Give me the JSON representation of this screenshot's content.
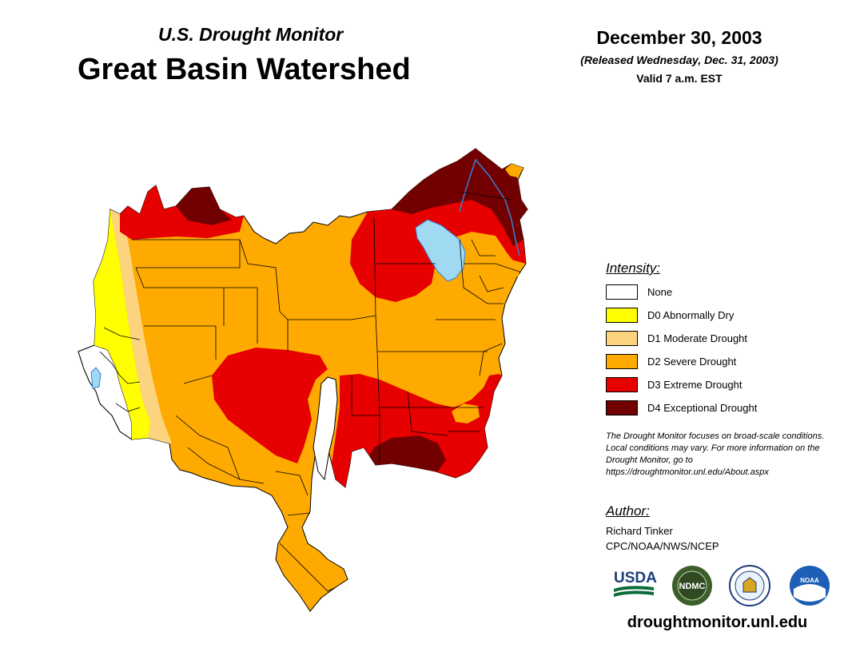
{
  "header": {
    "subtitle": "U.S. Drought Monitor",
    "title": "Great Basin Watershed",
    "date": "December 30, 2003",
    "released": "(Released Wednesday, Dec. 31, 2003)",
    "valid": "Valid 7 a.m. EST"
  },
  "legend": {
    "title": "Intensity:",
    "items": [
      {
        "label": "None",
        "color": "#ffffff"
      },
      {
        "label": "D0 Abnormally Dry",
        "color": "#ffff00"
      },
      {
        "label": "D1 Moderate Drought",
        "color": "#fcd37f"
      },
      {
        "label": "D2 Severe Drought",
        "color": "#ffaa00"
      },
      {
        "label": "D3 Extreme Drought",
        "color": "#e60000"
      },
      {
        "label": "D4 Exceptional Drought",
        "color": "#730000"
      }
    ]
  },
  "note": "The Drought Monitor focuses on broad-scale conditions. Local conditions may vary. For more information on the Drought Monitor, go to https://droughtmonitor.unl.edu/About.aspx",
  "author": {
    "title": "Author:",
    "name": "Richard Tinker",
    "org": "CPC/NOAA/NWS/NCEP"
  },
  "logos": [
    {
      "name": "usda-logo",
      "text": "USDA"
    },
    {
      "name": "ndmc-logo",
      "text": "NDMC"
    },
    {
      "name": "doc-logo",
      "text": ""
    },
    {
      "name": "noaa-logo",
      "text": "NOAA"
    }
  ],
  "footer_url": "droughtmonitor.unl.edu",
  "colors": {
    "water": "#9fd9f2",
    "river": "#3a7fd5",
    "border": "#000000"
  }
}
